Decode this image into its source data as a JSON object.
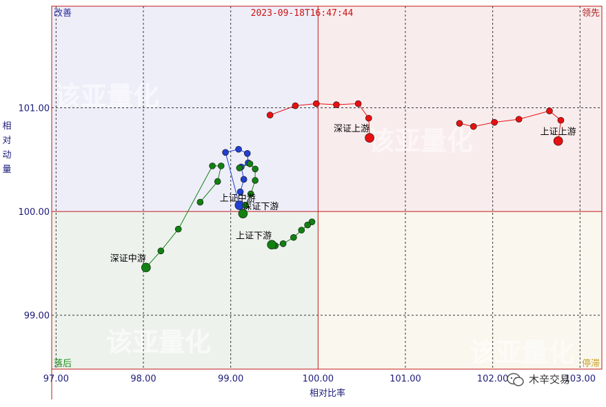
{
  "chart_data": {
    "type": "scatter",
    "timestamp": "2023-09-18T16:47:44",
    "xlabel": "相对比率",
    "ylabel": "相对动量",
    "xlim": [
      96.95,
      103.25
    ],
    "ylim": [
      98.48,
      101.98
    ],
    "x_ticks": [
      {
        "v": 97.0,
        "t": "97.00"
      },
      {
        "v": 98.0,
        "t": "98.00"
      },
      {
        "v": 99.0,
        "t": "99.00"
      },
      {
        "v": 100.0,
        "t": "100.00"
      },
      {
        "v": 101.0,
        "t": "101.00"
      },
      {
        "v": 102.0,
        "t": "102.00"
      },
      {
        "v": 103.0,
        "t": "103.00"
      }
    ],
    "y_ticks": [
      {
        "v": 99.0,
        "t": "99.00"
      },
      {
        "v": 100.0,
        "t": "100.00"
      },
      {
        "v": 101.0,
        "t": "101.00"
      }
    ],
    "center": [
      100.0,
      100.0
    ],
    "quadrants": {
      "top_left": "改善",
      "top_right": "领先",
      "bottom_left": "落后",
      "bottom_right": "停滞"
    },
    "quadrant_colors": {
      "top_left": "#eeeef9",
      "top_right": "#f9eced",
      "bottom_left": "#edf3ec",
      "bottom_right": "#faf7ee",
      "top_left_text": "#2a2a9a",
      "top_right_text": "#b02020",
      "bottom_left_text": "#1a8a1a",
      "bottom_right_text": "#c8a020"
    },
    "watermark": "该亚量化",
    "series": [
      {
        "name": "上证上游",
        "color": "#e81010",
        "points": [
          [
            101.62,
            100.85
          ],
          [
            101.78,
            100.82
          ],
          [
            102.02,
            100.86
          ],
          [
            102.3,
            100.89
          ],
          [
            102.65,
            100.97
          ],
          [
            102.78,
            100.88
          ],
          [
            102.75,
            100.68
          ]
        ]
      },
      {
        "name": "深证上游",
        "color": "#e81010",
        "points": [
          [
            99.45,
            100.93
          ],
          [
            99.74,
            101.02
          ],
          [
            99.98,
            101.04
          ],
          [
            100.21,
            101.03
          ],
          [
            100.46,
            101.04
          ],
          [
            100.58,
            100.9
          ],
          [
            100.59,
            100.71
          ]
        ]
      },
      {
        "name": "上证中游",
        "color": "#2240d0",
        "points": [
          [
            99.11,
            100.19
          ],
          [
            99.15,
            100.31
          ],
          [
            99.12,
            100.43
          ],
          [
            99.2,
            100.47
          ],
          [
            99.19,
            100.56
          ],
          [
            99.09,
            100.6
          ],
          [
            98.94,
            100.57
          ],
          [
            99.1,
            100.06
          ]
        ]
      },
      {
        "name": "深证中游",
        "color": "#128012",
        "points": [
          [
            98.65,
            100.09
          ],
          [
            98.85,
            100.29
          ],
          [
            98.89,
            100.44
          ],
          [
            98.79,
            100.44
          ],
          [
            98.4,
            99.83
          ],
          [
            98.2,
            99.62
          ],
          [
            98.03,
            99.46
          ]
        ]
      },
      {
        "name": "深证下游",
        "color": "#128012",
        "points": [
          [
            99.1,
            100.42
          ],
          [
            99.22,
            100.46
          ],
          [
            99.28,
            100.41
          ],
          [
            99.28,
            100.3
          ],
          [
            99.23,
            100.17
          ],
          [
            99.17,
            100.06
          ],
          [
            99.14,
            99.98
          ]
        ]
      },
      {
        "name": "上证下游",
        "color": "#128012",
        "points": [
          [
            99.93,
            99.9
          ],
          [
            99.88,
            99.87
          ],
          [
            99.81,
            99.82
          ],
          [
            99.72,
            99.75
          ],
          [
            99.6,
            99.69
          ],
          [
            99.51,
            99.67
          ],
          [
            99.47,
            99.68
          ]
        ]
      }
    ],
    "point_labels": [
      {
        "text": "上证上游",
        "x": 102.75,
        "y": 100.68,
        "anchor": "middle",
        "dy": -9
      },
      {
        "text": "深证上游",
        "x": 100.59,
        "y": 100.71,
        "anchor": "end",
        "dy": -9
      },
      {
        "text": "上证中游",
        "x": 99.08,
        "y": 100.06,
        "anchor": "middle",
        "dy": -6
      },
      {
        "text": "深证中游",
        "x": 98.03,
        "y": 99.46,
        "anchor": "end",
        "dy": -9
      },
      {
        "text": "深证下游",
        "x": 99.14,
        "y": 99.98,
        "anchor": "start",
        "dy": -6
      },
      {
        "text": "上证下游",
        "x": 99.47,
        "y": 99.68,
        "anchor": "end",
        "dy": -9
      }
    ]
  },
  "brand": {
    "icon": "wechat-icon",
    "text": "木辛交易"
  }
}
